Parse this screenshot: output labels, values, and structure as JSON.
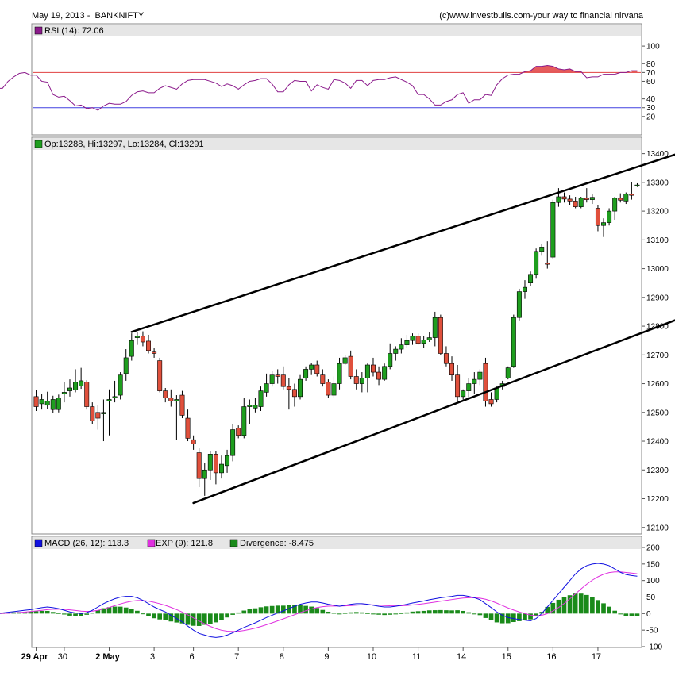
{
  "header": {
    "left": "May 19, 2013 -  BANKNIFTY",
    "right": "(c)www.investbulls.com-your way to financial nirvana"
  },
  "colors": {
    "up": "#1e9e1e",
    "down": "#e0503c",
    "rsi_line": "#8b1a8b",
    "rsi_ob": "#e04040",
    "rsi_os": "#4040e0",
    "macd": "#1010e0",
    "signal": "#e030e0",
    "histogram": "#1a8a1a",
    "panel_bg": "#e6e6e6"
  },
  "chart_data": [
    {
      "type": "line",
      "name": "rsi-panel",
      "legend": "RSI (14): 72.06",
      "ylim": [
        0,
        110
      ],
      "yticks": [
        20,
        30,
        40,
        60,
        70,
        80,
        100
      ],
      "levels": [
        70,
        30
      ],
      "values": [
        52,
        52,
        60,
        65,
        69,
        70,
        67,
        67,
        60,
        59,
        45,
        42,
        43,
        38,
        32,
        33,
        29,
        30,
        27,
        32,
        35,
        34,
        34,
        37,
        44,
        48,
        49,
        47,
        47,
        52,
        55,
        53,
        51,
        57,
        61,
        62,
        62,
        62,
        60,
        58,
        54,
        57,
        55,
        51,
        56,
        60,
        61,
        63,
        63,
        57,
        48,
        48,
        56,
        61,
        60,
        60,
        49,
        56,
        53,
        51,
        62,
        61,
        58,
        52,
        61,
        61,
        55,
        61,
        62,
        62,
        64,
        65,
        62,
        59,
        55,
        45,
        45,
        40,
        33,
        33,
        37,
        39,
        45,
        47,
        35,
        39,
        39,
        45,
        44,
        56,
        63,
        67,
        68,
        68,
        71,
        72,
        77,
        77,
        78,
        77,
        74,
        73,
        74,
        71,
        71,
        64,
        65,
        65,
        68,
        68,
        68,
        70,
        70,
        72,
        72
      ]
    },
    {
      "type": "candlestick",
      "name": "price-panel",
      "legend": "Op:13288, Hi:13297, Lo:13284, Cl:13291",
      "ylim": [
        12080,
        13410
      ],
      "yticks": [
        12100,
        12200,
        12300,
        12400,
        12500,
        12600,
        12700,
        12800,
        12900,
        13000,
        13100,
        13200,
        13300,
        13400
      ],
      "x_labels": [
        "29 Apr",
        "30",
        "2 May",
        "3",
        "6",
        "7",
        "8",
        "9",
        "10",
        "11",
        "14",
        "15",
        "16",
        "17"
      ],
      "ohlc": [
        [
          12555,
          12578,
          12505,
          12520
        ],
        [
          12530,
          12565,
          12510,
          12545
        ],
        [
          12525,
          12572,
          12512,
          12540
        ],
        [
          12510,
          12558,
          12498,
          12545
        ],
        [
          12510,
          12562,
          12500,
          12550
        ],
        [
          12565,
          12605,
          12535,
          12570
        ],
        [
          12575,
          12615,
          12555,
          12585
        ],
        [
          12578,
          12650,
          12570,
          12605
        ],
        [
          12592,
          12655,
          12582,
          12610
        ],
        [
          12606,
          12612,
          12510,
          12520
        ],
        [
          12520,
          12535,
          12460,
          12470
        ],
        [
          12500,
          12525,
          12440,
          12480
        ],
        [
          12495,
          12545,
          12400,
          12500
        ],
        [
          12540,
          12580,
          12420,
          12545
        ],
        [
          12550,
          12610,
          12535,
          12555
        ],
        [
          12560,
          12640,
          12545,
          12630
        ],
        [
          12635,
          12720,
          12610,
          12690
        ],
        [
          12695,
          12775,
          12680,
          12750
        ],
        [
          12760,
          12780,
          12735,
          12765
        ],
        [
          12765,
          12782,
          12730,
          12745
        ],
        [
          12748,
          12770,
          12705,
          12715
        ],
        [
          12710,
          12725,
          12690,
          12705
        ],
        [
          12680,
          12690,
          12570,
          12575
        ],
        [
          12575,
          12585,
          12535,
          12550
        ],
        [
          12550,
          12580,
          12520,
          12540
        ],
        [
          12540,
          12560,
          12405,
          12545
        ],
        [
          12560,
          12575,
          12480,
          12490
        ],
        [
          12480,
          12510,
          12400,
          12410
        ],
        [
          12405,
          12420,
          12370,
          12390
        ],
        [
          12360,
          12375,
          12240,
          12270
        ],
        [
          12270,
          12325,
          12210,
          12300
        ],
        [
          12300,
          12365,
          12265,
          12355
        ],
        [
          12355,
          12365,
          12250,
          12290
        ],
        [
          12290,
          12350,
          12270,
          12320
        ],
        [
          12315,
          12370,
          12290,
          12350
        ],
        [
          12350,
          12460,
          12330,
          12440
        ],
        [
          12445,
          12455,
          12410,
          12420
        ],
        [
          12420,
          12550,
          12410,
          12520
        ],
        [
          12520,
          12545,
          12460,
          12525
        ],
        [
          12515,
          12550,
          12500,
          12525
        ],
        [
          12520,
          12590,
          12505,
          12575
        ],
        [
          12570,
          12635,
          12555,
          12600
        ],
        [
          12600,
          12645,
          12590,
          12630
        ],
        [
          12630,
          12650,
          12600,
          12625
        ],
        [
          12630,
          12660,
          12580,
          12590
        ],
        [
          12590,
          12620,
          12510,
          12580
        ],
        [
          12580,
          12600,
          12520,
          12555
        ],
        [
          12555,
          12630,
          12545,
          12615
        ],
        [
          12620,
          12660,
          12610,
          12650
        ],
        [
          12650,
          12672,
          12630,
          12665
        ],
        [
          12665,
          12680,
          12625,
          12635
        ],
        [
          12630,
          12650,
          12590,
          12600
        ],
        [
          12605,
          12615,
          12550,
          12560
        ],
        [
          12560,
          12625,
          12550,
          12600
        ],
        [
          12600,
          12690,
          12580,
          12670
        ],
        [
          12670,
          12700,
          12665,
          12690
        ],
        [
          12695,
          12715,
          12615,
          12625
        ],
        [
          12625,
          12650,
          12580,
          12600
        ],
        [
          12600,
          12640,
          12570,
          12620
        ],
        [
          12620,
          12670,
          12570,
          12665
        ],
        [
          12665,
          12690,
          12625,
          12640
        ],
        [
          12640,
          12660,
          12595,
          12615
        ],
        [
          12615,
          12670,
          12610,
          12660
        ],
        [
          12660,
          12740,
          12650,
          12705
        ],
        [
          12705,
          12730,
          12680,
          12720
        ],
        [
          12720,
          12758,
          12705,
          12735
        ],
        [
          12735,
          12770,
          12725,
          12750
        ],
        [
          12750,
          12775,
          12735,
          12765
        ],
        [
          12765,
          12775,
          12735,
          12740
        ],
        [
          12740,
          12765,
          12725,
          12752
        ],
        [
          12752,
          12778,
          12745,
          12760
        ],
        [
          12760,
          12850,
          12730,
          12830
        ],
        [
          12830,
          12840,
          12700,
          12705
        ],
        [
          12705,
          12730,
          12660,
          12670
        ],
        [
          12670,
          12695,
          12610,
          12630
        ],
        [
          12630,
          12665,
          12540,
          12555
        ],
        [
          12555,
          12580,
          12545,
          12575
        ],
        [
          12575,
          12620,
          12545,
          12600
        ],
        [
          12600,
          12640,
          12565,
          12615
        ],
        [
          12615,
          12650,
          12595,
          12640
        ],
        [
          12670,
          12690,
          12520,
          12540
        ],
        [
          12545,
          12570,
          12520,
          12530
        ],
        [
          12545,
          12590,
          12535,
          12585
        ],
        [
          12590,
          12610,
          12580,
          12600
        ],
        [
          12620,
          12660,
          12615,
          12655
        ],
        [
          12660,
          12840,
          12655,
          12830
        ],
        [
          12830,
          12930,
          12820,
          12920
        ],
        [
          12920,
          12960,
          12895,
          12935
        ],
        [
          12950,
          12990,
          12940,
          12980
        ],
        [
          12980,
          13070,
          12965,
          13060
        ],
        [
          13060,
          13085,
          13045,
          13075
        ],
        [
          13020,
          13095,
          13000,
          13015
        ],
        [
          13040,
          13240,
          13035,
          13230
        ],
        [
          13230,
          13280,
          13215,
          13250
        ],
        [
          13250,
          13265,
          13230,
          13242
        ],
        [
          13242,
          13255,
          13220,
          13235
        ],
        [
          13235,
          13250,
          13210,
          13215
        ],
        [
          13215,
          13250,
          13210,
          13245
        ],
        [
          13245,
          13280,
          13230,
          13240
        ],
        [
          13240,
          13258,
          13225,
          13248
        ],
        [
          13210,
          13220,
          13130,
          13150
        ],
        [
          13150,
          13175,
          13110,
          13160
        ],
        [
          13160,
          13210,
          13150,
          13200
        ],
        [
          13200,
          13250,
          13170,
          13245
        ],
        [
          13245,
          13262,
          13230,
          13238
        ],
        [
          13235,
          13265,
          13225,
          13260
        ],
        [
          13260,
          13300,
          13240,
          13255
        ],
        [
          13288,
          13297,
          13284,
          13291
        ]
      ],
      "trendlines": [
        {
          "name": "upper-channel",
          "from": {
            "bar": 17,
            "value": 12780
          },
          "to": {
            "bar": 115,
            "value": 13405
          }
        },
        {
          "name": "lower-channel",
          "from": {
            "bar": 28,
            "value": 12185
          },
          "to": {
            "bar": 115,
            "value": 12830
          }
        }
      ]
    },
    {
      "type": "bar",
      "name": "macd-panel",
      "legend": {
        "macd": "MACD (26, 12): 113.3",
        "signal": "EXP (9): 121.8",
        "divergence": "Divergence: -8.475"
      },
      "ylim": [
        -100,
        200
      ],
      "yticks": [
        -100,
        -50,
        0,
        50,
        100,
        150,
        200
      ],
      "macd": [
        0,
        0,
        2,
        4,
        6,
        8,
        10,
        12,
        15,
        18,
        20,
        18,
        15,
        10,
        5,
        2,
        0,
        3,
        10,
        20,
        30,
        38,
        45,
        50,
        52,
        52,
        48,
        40,
        30,
        20,
        12,
        5,
        -5,
        -15,
        -25,
        -38,
        -50,
        -60,
        -65,
        -70,
        -72,
        -70,
        -65,
        -58,
        -50,
        -42,
        -35,
        -28,
        -20,
        -12,
        -5,
        2,
        8,
        15,
        22,
        28,
        32,
        35,
        35,
        32,
        28,
        25,
        22,
        25,
        28,
        30,
        30,
        28,
        25,
        22,
        20,
        20,
        22,
        25,
        28,
        32,
        35,
        38,
        42,
        45,
        48,
        50,
        52,
        55,
        55,
        52,
        48,
        42,
        30,
        18,
        5,
        -5,
        -12,
        -15,
        -18,
        -20,
        -22,
        -15,
        0,
        20,
        40,
        60,
        80,
        100,
        120,
        135,
        145,
        150,
        152,
        150,
        145,
        135,
        125,
        118,
        115,
        113
      ]
    }
  ]
}
